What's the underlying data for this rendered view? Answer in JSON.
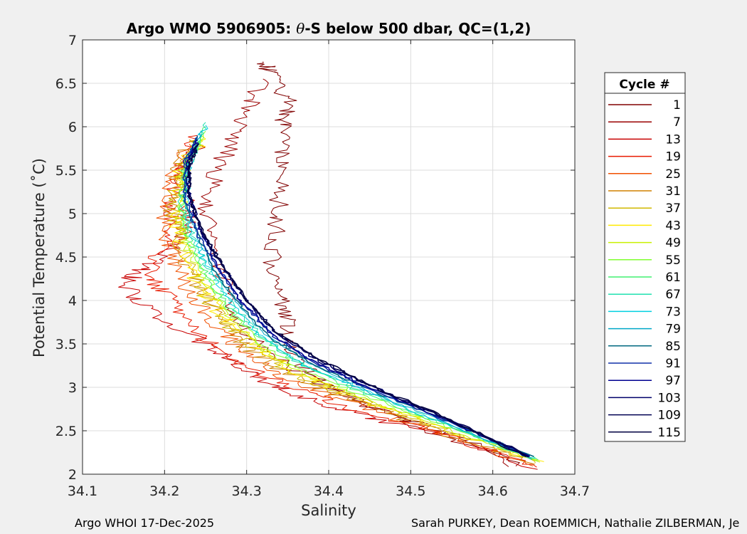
{
  "chart_data": {
    "type": "line",
    "title_prefix": "Argo WMO 5906905: ",
    "title_theta": "θ",
    "title_suffix": "-S below 500 dbar,  QC=(1,2)",
    "xlabel": "Salinity",
    "ylabel": "Potential Temperature (˚C)",
    "xlim": [
      34.1,
      34.7
    ],
    "ylim": [
      2,
      7
    ],
    "xticks": [
      34.1,
      34.2,
      34.3,
      34.4,
      34.5,
      34.6,
      34.7
    ],
    "xtick_labels": [
      "34.1",
      "34.2",
      "34.3",
      "34.4",
      "34.5",
      "34.6",
      "34.7"
    ],
    "yticks": [
      2,
      2.5,
      3,
      3.5,
      4,
      4.5,
      5,
      5.5,
      6,
      6.5,
      7
    ],
    "ytick_labels": [
      "2",
      "2.5",
      "3",
      "3.5",
      "4",
      "4.5",
      "5",
      "5.5",
      "6",
      "6.5",
      "7"
    ],
    "grid": true,
    "legend": {
      "title": "Cycle #",
      "position": "right",
      "entries": [
        {
          "label": "1",
          "color": "#800000"
        },
        {
          "label": "7",
          "color": "#9a0000"
        },
        {
          "label": "13",
          "color": "#c80000"
        },
        {
          "label": "19",
          "color": "#e81a00"
        },
        {
          "label": "25",
          "color": "#f05000"
        },
        {
          "label": "31",
          "color": "#d08000"
        },
        {
          "label": "37",
          "color": "#d0b800"
        },
        {
          "label": "43",
          "color": "#ffea00"
        },
        {
          "label": "49",
          "color": "#c8f000"
        },
        {
          "label": "55",
          "color": "#80ff30"
        },
        {
          "label": "61",
          "color": "#40f070"
        },
        {
          "label": "67",
          "color": "#20e0b0"
        },
        {
          "label": "73",
          "color": "#00d0e0"
        },
        {
          "label": "79",
          "color": "#00a8c8"
        },
        {
          "label": "85",
          "color": "#006880"
        },
        {
          "label": "91",
          "color": "#1030a8"
        },
        {
          "label": "97",
          "color": "#000090"
        },
        {
          "label": "103",
          "color": "#00006a"
        },
        {
          "label": "109",
          "color": "#000052"
        },
        {
          "label": "115",
          "color": "#000040"
        }
      ]
    },
    "series": [
      {
        "name": "1",
        "color": "#800000",
        "points": [
          [
            34.64,
            2.08
          ],
          [
            34.55,
            2.45
          ],
          [
            34.45,
            2.78
          ],
          [
            34.39,
            3.05
          ],
          [
            34.36,
            3.35
          ],
          [
            34.35,
            3.7
          ],
          [
            34.34,
            4.0
          ],
          [
            34.33,
            4.4
          ],
          [
            34.335,
            4.8
          ],
          [
            34.34,
            5.2
          ],
          [
            34.34,
            5.6
          ],
          [
            34.345,
            6.0
          ],
          [
            34.35,
            6.3
          ],
          [
            34.33,
            6.6
          ],
          [
            34.32,
            6.75
          ]
        ]
      },
      {
        "name": "7",
        "color": "#9a0000",
        "points": [
          [
            34.63,
            2.1
          ],
          [
            34.52,
            2.52
          ],
          [
            34.42,
            2.9
          ],
          [
            34.35,
            3.25
          ],
          [
            34.3,
            3.6
          ],
          [
            34.28,
            4.0
          ],
          [
            34.26,
            4.5
          ],
          [
            34.25,
            5.0
          ],
          [
            34.26,
            5.4
          ],
          [
            34.28,
            5.8
          ],
          [
            34.3,
            6.2
          ],
          [
            34.32,
            6.55
          ]
        ]
      },
      {
        "name": "13",
        "color": "#c80000",
        "points": [
          [
            34.66,
            2.05
          ],
          [
            34.55,
            2.42
          ],
          [
            34.43,
            2.7
          ],
          [
            34.35,
            2.95
          ],
          [
            34.3,
            3.2
          ],
          [
            34.25,
            3.5
          ],
          [
            34.18,
            3.9
          ],
          [
            34.15,
            4.2
          ],
          [
            34.18,
            4.4
          ],
          [
            34.22,
            4.7
          ],
          [
            34.23,
            5.0
          ],
          [
            34.22,
            5.4
          ],
          [
            34.24,
            5.8
          ]
        ]
      },
      {
        "name": "19",
        "color": "#e81a00",
        "points": [
          [
            34.66,
            2.07
          ],
          [
            34.53,
            2.48
          ],
          [
            34.42,
            2.78
          ],
          [
            34.34,
            3.05
          ],
          [
            34.29,
            3.3
          ],
          [
            34.24,
            3.6
          ],
          [
            34.21,
            4.0
          ],
          [
            34.18,
            4.3
          ],
          [
            34.2,
            4.7
          ],
          [
            34.21,
            5.1
          ],
          [
            34.22,
            5.5
          ],
          [
            34.24,
            5.9
          ]
        ]
      },
      {
        "name": "25",
        "color": "#f05000",
        "points": [
          [
            34.65,
            2.1
          ],
          [
            34.52,
            2.52
          ],
          [
            34.42,
            2.85
          ],
          [
            34.35,
            3.1
          ],
          [
            34.3,
            3.4
          ],
          [
            34.26,
            3.7
          ],
          [
            34.23,
            4.1
          ],
          [
            34.21,
            4.5
          ],
          [
            34.2,
            4.9
          ],
          [
            34.2,
            5.3
          ],
          [
            34.23,
            5.8
          ]
        ]
      },
      {
        "name": "31",
        "color": "#d08000",
        "points": [
          [
            34.65,
            2.12
          ],
          [
            34.52,
            2.54
          ],
          [
            34.42,
            2.88
          ],
          [
            34.35,
            3.15
          ],
          [
            34.3,
            3.45
          ],
          [
            34.27,
            3.8
          ],
          [
            34.24,
            4.2
          ],
          [
            34.22,
            4.6
          ],
          [
            34.21,
            5.0
          ],
          [
            34.21,
            5.4
          ],
          [
            34.23,
            5.85
          ]
        ]
      },
      {
        "name": "37",
        "color": "#d0b800",
        "points": [
          [
            34.66,
            2.13
          ],
          [
            34.53,
            2.55
          ],
          [
            34.43,
            2.88
          ],
          [
            34.36,
            3.15
          ],
          [
            34.31,
            3.45
          ],
          [
            34.27,
            3.8
          ],
          [
            34.24,
            4.2
          ],
          [
            34.22,
            4.6
          ],
          [
            34.21,
            5.0
          ],
          [
            34.22,
            5.45
          ],
          [
            34.24,
            5.85
          ]
        ]
      },
      {
        "name": "43",
        "color": "#ffea00",
        "points": [
          [
            34.66,
            2.14
          ],
          [
            34.53,
            2.56
          ],
          [
            34.43,
            2.9
          ],
          [
            34.36,
            3.18
          ],
          [
            34.31,
            3.48
          ],
          [
            34.27,
            3.82
          ],
          [
            34.24,
            4.22
          ],
          [
            34.22,
            4.62
          ],
          [
            34.215,
            5.0
          ],
          [
            34.22,
            5.45
          ],
          [
            34.245,
            5.9
          ]
        ]
      },
      {
        "name": "49",
        "color": "#c8f000",
        "points": [
          [
            34.655,
            2.15
          ],
          [
            34.53,
            2.57
          ],
          [
            34.43,
            2.92
          ],
          [
            34.36,
            3.2
          ],
          [
            34.31,
            3.5
          ],
          [
            34.275,
            3.85
          ],
          [
            34.245,
            4.25
          ],
          [
            34.225,
            4.65
          ],
          [
            34.215,
            5.05
          ],
          [
            34.22,
            5.5
          ],
          [
            34.245,
            5.9
          ]
        ]
      },
      {
        "name": "55",
        "color": "#80ff30",
        "points": [
          [
            34.655,
            2.16
          ],
          [
            34.535,
            2.58
          ],
          [
            34.435,
            2.93
          ],
          [
            34.365,
            3.22
          ],
          [
            34.315,
            3.52
          ],
          [
            34.28,
            3.87
          ],
          [
            34.25,
            4.27
          ],
          [
            34.23,
            4.67
          ],
          [
            34.22,
            5.07
          ],
          [
            34.225,
            5.52
          ],
          [
            34.25,
            5.95
          ]
        ]
      },
      {
        "name": "61",
        "color": "#40f070",
        "points": [
          [
            34.655,
            2.17
          ],
          [
            34.535,
            2.6
          ],
          [
            34.44,
            2.95
          ],
          [
            34.37,
            3.24
          ],
          [
            34.32,
            3.55
          ],
          [
            34.28,
            3.9
          ],
          [
            34.25,
            4.3
          ],
          [
            34.23,
            4.7
          ],
          [
            34.22,
            5.1
          ],
          [
            34.225,
            5.55
          ],
          [
            34.25,
            6.0
          ]
        ]
      },
      {
        "name": "67",
        "color": "#20e0b0",
        "points": [
          [
            34.65,
            2.17
          ],
          [
            34.535,
            2.6
          ],
          [
            34.44,
            2.96
          ],
          [
            34.37,
            3.25
          ],
          [
            34.32,
            3.56
          ],
          [
            34.285,
            3.92
          ],
          [
            34.255,
            4.32
          ],
          [
            34.235,
            4.72
          ],
          [
            34.22,
            5.12
          ],
          [
            34.23,
            5.57
          ],
          [
            34.25,
            6.05
          ]
        ]
      },
      {
        "name": "73",
        "color": "#00d0e0",
        "points": [
          [
            34.65,
            2.18
          ],
          [
            34.535,
            2.61
          ],
          [
            34.44,
            2.97
          ],
          [
            34.37,
            3.26
          ],
          [
            34.32,
            3.57
          ],
          [
            34.285,
            3.93
          ],
          [
            34.255,
            4.33
          ],
          [
            34.235,
            4.73
          ],
          [
            34.225,
            5.13
          ],
          [
            34.23,
            5.58
          ],
          [
            34.25,
            6.02
          ]
        ]
      },
      {
        "name": "79",
        "color": "#00a8c8",
        "points": [
          [
            34.65,
            2.18
          ],
          [
            34.535,
            2.62
          ],
          [
            34.44,
            2.98
          ],
          [
            34.375,
            3.28
          ],
          [
            34.325,
            3.59
          ],
          [
            34.29,
            3.95
          ],
          [
            34.26,
            4.35
          ],
          [
            34.24,
            4.75
          ],
          [
            34.225,
            5.15
          ],
          [
            34.23,
            5.6
          ],
          [
            34.245,
            5.95
          ]
        ]
      },
      {
        "name": "85",
        "color": "#006880",
        "points": [
          [
            34.65,
            2.19
          ],
          [
            34.54,
            2.63
          ],
          [
            34.445,
            2.99
          ],
          [
            34.375,
            3.29
          ],
          [
            34.325,
            3.6
          ],
          [
            34.29,
            3.96
          ],
          [
            34.26,
            4.36
          ],
          [
            34.24,
            4.76
          ],
          [
            34.225,
            5.16
          ],
          [
            34.225,
            5.6
          ],
          [
            34.24,
            5.9
          ]
        ]
      },
      {
        "name": "91",
        "color": "#1030a8",
        "points": [
          [
            34.645,
            2.19
          ],
          [
            34.54,
            2.63
          ],
          [
            34.445,
            3.0
          ],
          [
            34.38,
            3.3
          ],
          [
            34.33,
            3.61
          ],
          [
            34.295,
            3.97
          ],
          [
            34.265,
            4.37
          ],
          [
            34.24,
            4.77
          ],
          [
            34.225,
            5.17
          ],
          [
            34.225,
            5.6
          ],
          [
            34.24,
            5.88
          ]
        ]
      },
      {
        "name": "97",
        "color": "#000090",
        "points": [
          [
            34.645,
            2.2
          ],
          [
            34.54,
            2.64
          ],
          [
            34.445,
            3.01
          ],
          [
            34.38,
            3.31
          ],
          [
            34.33,
            3.62
          ],
          [
            34.295,
            3.98
          ],
          [
            34.265,
            4.38
          ],
          [
            34.245,
            4.78
          ],
          [
            34.23,
            5.18
          ],
          [
            34.228,
            5.6
          ],
          [
            34.24,
            5.85
          ]
        ]
      },
      {
        "name": "103",
        "color": "#00006a",
        "points": [
          [
            34.645,
            2.2
          ],
          [
            34.54,
            2.65
          ],
          [
            34.45,
            3.02
          ],
          [
            34.385,
            3.32
          ],
          [
            34.335,
            3.63
          ],
          [
            34.3,
            4.0
          ],
          [
            34.27,
            4.4
          ],
          [
            34.245,
            4.8
          ],
          [
            34.23,
            5.2
          ],
          [
            34.228,
            5.6
          ],
          [
            34.24,
            5.82
          ]
        ]
      },
      {
        "name": "109",
        "color": "#000052",
        "points": [
          [
            34.645,
            2.21
          ],
          [
            34.54,
            2.65
          ],
          [
            34.45,
            3.02
          ],
          [
            34.385,
            3.33
          ],
          [
            34.335,
            3.64
          ],
          [
            34.3,
            4.0
          ],
          [
            34.27,
            4.4
          ],
          [
            34.245,
            4.8
          ],
          [
            34.23,
            5.2
          ],
          [
            34.23,
            5.55
          ],
          [
            34.24,
            5.8
          ]
        ]
      },
      {
        "name": "115",
        "color": "#000040",
        "points": [
          [
            34.64,
            2.21
          ],
          [
            34.54,
            2.66
          ],
          [
            34.45,
            3.03
          ],
          [
            34.385,
            3.34
          ],
          [
            34.335,
            3.65
          ],
          [
            34.3,
            4.01
          ],
          [
            34.27,
            4.41
          ],
          [
            34.245,
            4.81
          ],
          [
            34.23,
            5.21
          ],
          [
            34.23,
            5.55
          ],
          [
            34.24,
            5.78
          ]
        ]
      }
    ]
  },
  "footer": {
    "left": "Argo WHOI 17-Dec-2025",
    "right": "Sarah PURKEY, Dean ROEMMICH, Nathalie ZILBERMAN, Je"
  }
}
